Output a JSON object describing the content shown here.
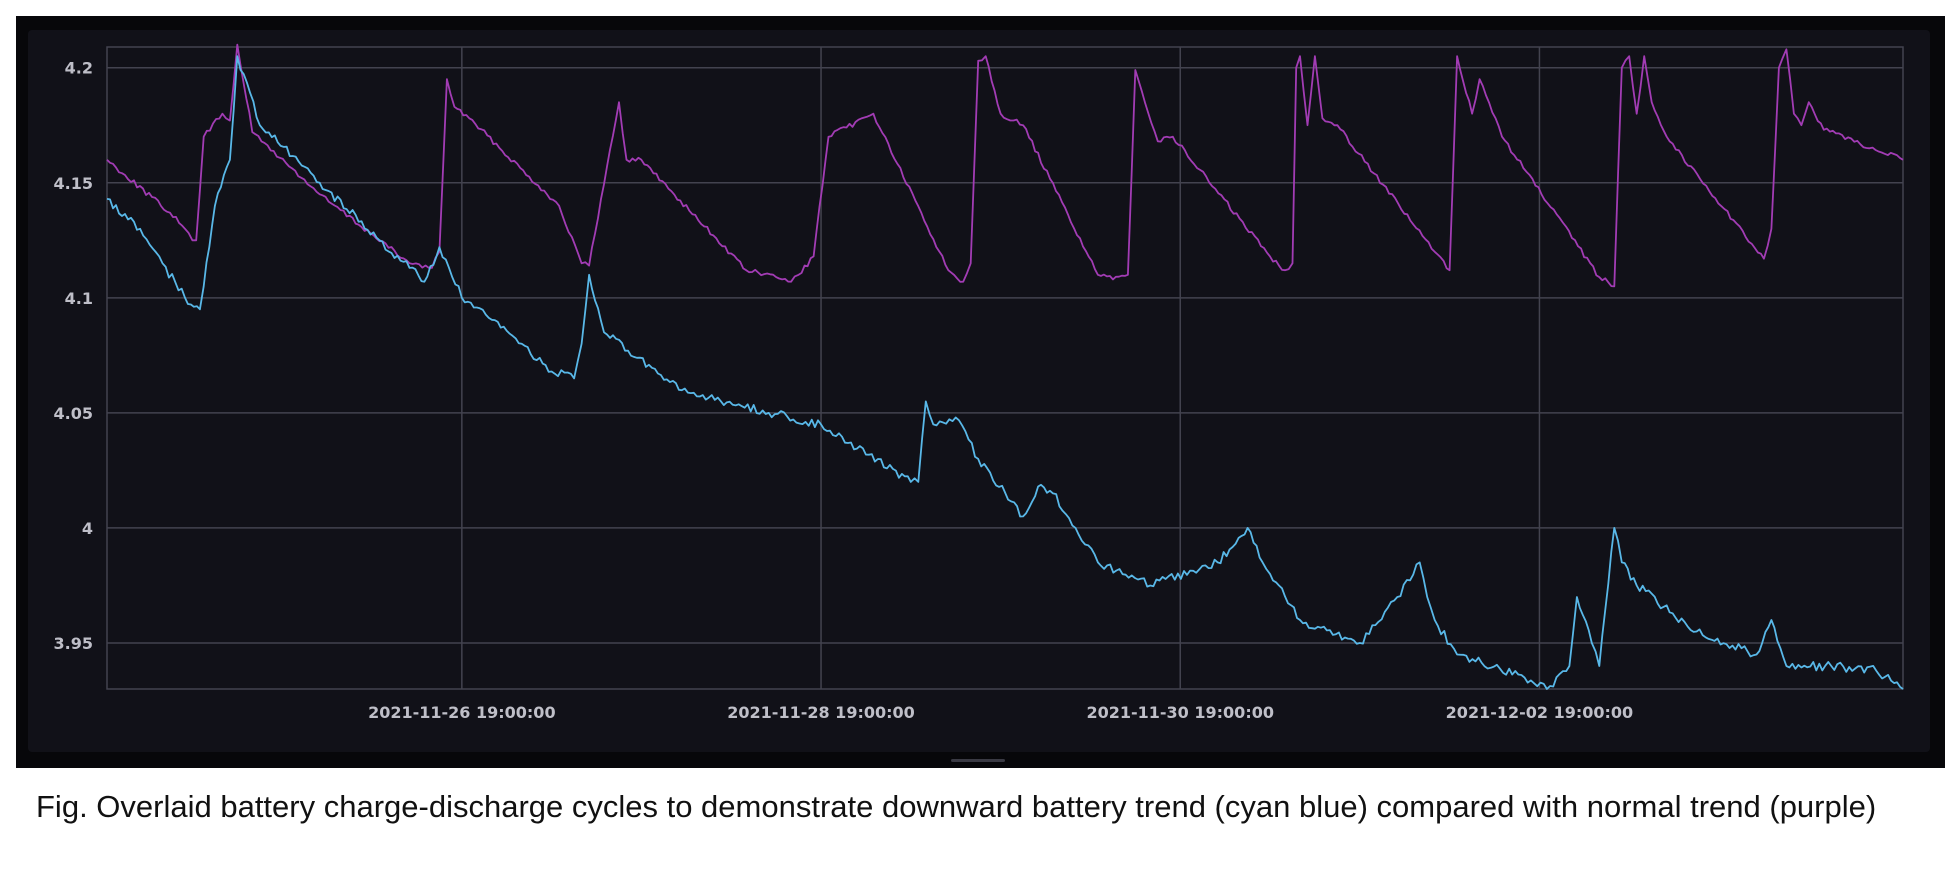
{
  "caption": "Fig. Overlaid battery charge-discharge cycles to demonstrate downward battery trend (cyan blue) compared with normal trend (purple)",
  "chart_data": {
    "type": "line",
    "title": "",
    "xlabel": "",
    "ylabel": "",
    "ylim": [
      3.93,
      4.209
    ],
    "xlim": [
      "2021-11-24 19:35:00",
      "2021-12-04 19:35:00"
    ],
    "grid": true,
    "legend": "none",
    "background": "#111118",
    "y_ticks": [
      {
        "value": 3.95,
        "label": "3.95"
      },
      {
        "value": 4.0,
        "label": "4"
      },
      {
        "value": 4.05,
        "label": "4.05"
      },
      {
        "value": 4.1,
        "label": "4.1"
      },
      {
        "value": 4.15,
        "label": "4.15"
      },
      {
        "value": 4.2,
        "label": "4.2"
      }
    ],
    "x_ticks": [
      {
        "value": "2021-11-26 19:00:00",
        "label": "2021-11-26 19:00:00"
      },
      {
        "value": "2021-11-28 19:00:00",
        "label": "2021-11-28 19:00:00"
      },
      {
        "value": "2021-11-30 19:00:00",
        "label": "2021-11-30 19:00:00"
      },
      {
        "value": "2021-12-02 19:00:00",
        "label": "2021-12-02 19:00:00"
      }
    ],
    "series": [
      {
        "color": "#a23cb4",
        "x": [
          "2021-11-24 19:35",
          "2021-11-25 04:00",
          "2021-11-25 06:00",
          "2021-11-25 07:00",
          "2021-11-25 07:30",
          "2021-11-25 08:30",
          "2021-11-25 11:00",
          "2021-11-25 12:00",
          "2021-11-25 13:00",
          "2021-11-25 15:00",
          "2021-11-26 00:00",
          "2021-11-26 12:00",
          "2021-11-26 15:00",
          "2021-11-26 16:00",
          "2021-11-26 17:00",
          "2021-11-26 18:00",
          "2021-11-26 20:00",
          "2021-11-27 08:00",
          "2021-11-27 11:00",
          "2021-11-27 12:00",
          "2021-11-27 16:00",
          "2021-11-27 17:00",
          "2021-11-27 19:00",
          "2021-11-28 09:00",
          "2021-11-28 13:00",
          "2021-11-28 15:00",
          "2021-11-28 16:00",
          "2021-11-28 18:00",
          "2021-11-28 20:00",
          "2021-11-29 02:00",
          "2021-11-29 12:00",
          "2021-11-29 14:00",
          "2021-11-29 15:00",
          "2021-11-29 16:00",
          "2021-11-29 17:00",
          "2021-11-29 19:00",
          "2021-11-29 22:00",
          "2021-11-30 08:00",
          "2021-11-30 10:00",
          "2021-11-30 12:00",
          "2021-11-30 13:00",
          "2021-11-30 16:00",
          "2021-11-30 18:00",
          "2021-12-01 07:00",
          "2021-12-01 09:00",
          "2021-12-01 10:00",
          "2021-12-01 10:30",
          "2021-12-01 11:00",
          "2021-12-01 12:00",
          "2021-12-01 13:00",
          "2021-12-01 14:00",
          "2021-12-01 16:00",
          "2021-12-02 05:00",
          "2021-12-02 07:00",
          "2021-12-02 08:00",
          "2021-12-02 10:00",
          "2021-12-02 11:00",
          "2021-12-02 14:00",
          "2021-12-03 03:00",
          "2021-12-03 05:00",
          "2021-12-03 06:00",
          "2021-12-03 07:00",
          "2021-12-03 08:00",
          "2021-12-03 09:00",
          "2021-12-03 10:00",
          "2021-12-03 12:00",
          "2021-12-04 01:00",
          "2021-12-04 02:00",
          "2021-12-04 03:00",
          "2021-12-04 04:00",
          "2021-12-04 05:00",
          "2021-12-04 06:00",
          "2021-12-04 07:00",
          "2021-12-04 09:00",
          "2021-12-04 19:35"
        ],
        "y": [
          4.16,
          4.137,
          4.13,
          4.125,
          4.125,
          4.17,
          4.18,
          4.177,
          4.21,
          4.172,
          4.145,
          4.115,
          4.113,
          4.12,
          4.195,
          4.183,
          4.178,
          4.14,
          4.115,
          4.114,
          4.185,
          4.16,
          4.16,
          4.112,
          4.109,
          4.107,
          4.11,
          4.118,
          4.17,
          4.18,
          4.112,
          4.107,
          4.115,
          4.203,
          4.205,
          4.18,
          4.175,
          4.11,
          4.108,
          4.11,
          4.199,
          4.168,
          4.17,
          4.118,
          4.112,
          4.115,
          4.2,
          4.205,
          4.175,
          4.205,
          4.178,
          4.175,
          4.12,
          4.112,
          4.205,
          4.18,
          4.195,
          4.17,
          4.109,
          4.105,
          4.2,
          4.205,
          4.18,
          4.205,
          4.185,
          4.17,
          4.117,
          4.13,
          4.2,
          4.208,
          4.18,
          4.175,
          4.185,
          4.173,
          4.16
        ]
      },
      {
        "color": "#59b8e8",
        "x": [
          "2021-11-24 19:35",
          "2021-11-25 00:00",
          "2021-11-25 03:00",
          "2021-11-25 06:00",
          "2021-11-25 08:00",
          "2021-11-25 08:30",
          "2021-11-25 10:00",
          "2021-11-25 12:00",
          "2021-11-25 13:00",
          "2021-11-25 16:00",
          "2021-11-26 00:00",
          "2021-11-26 08:00",
          "2021-11-26 12:00",
          "2021-11-26 14:00",
          "2021-11-26 16:00",
          "2021-11-26 19:00",
          "2021-11-27 03:00",
          "2021-11-27 07:00",
          "2021-11-27 10:00",
          "2021-11-27 11:00",
          "2021-11-27 12:00",
          "2021-11-27 14:00",
          "2021-11-28 00:00",
          "2021-11-28 12:00",
          "2021-11-28 19:00",
          "2021-11-29 07:00",
          "2021-11-29 08:00",
          "2021-11-29 09:00",
          "2021-11-29 10:00",
          "2021-11-29 13:00",
          "2021-11-29 16:00",
          "2021-11-29 22:00",
          "2021-11-30 00:00",
          "2021-11-30 02:00",
          "2021-11-30 05:00",
          "2021-11-30 08:00",
          "2021-11-30 15:00",
          "2021-12-01 00:00",
          "2021-12-01 04:00",
          "2021-12-01 06:00",
          "2021-12-01 07:00",
          "2021-12-01 11:00",
          "2021-12-01 19:00",
          "2021-12-02 00:00",
          "2021-12-02 03:00",
          "2021-12-02 04:00",
          "2021-12-02 05:00",
          "2021-12-02 08:00",
          "2021-12-02 17:00",
          "2021-12-02 20:00",
          "2021-12-02 23:00",
          "2021-12-03 00:00",
          "2021-12-03 02:00",
          "2021-12-03 03:00",
          "2021-12-03 05:00",
          "2021-12-03 06:00",
          "2021-12-03 08:00",
          "2021-12-03 16:00",
          "2021-12-04 00:00",
          "2021-12-04 02:00",
          "2021-12-04 04:00",
          "2021-12-04 10:00",
          "2021-12-04 16:00",
          "2021-12-04 19:35"
        ],
        "y": [
          4.143,
          4.13,
          4.115,
          4.1,
          4.095,
          4.105,
          4.14,
          4.16,
          4.205,
          4.175,
          4.15,
          4.125,
          4.113,
          4.107,
          4.122,
          4.1,
          4.08,
          4.068,
          4.065,
          4.08,
          4.11,
          4.085,
          4.06,
          4.05,
          4.045,
          4.02,
          4.02,
          4.055,
          4.045,
          4.048,
          4.03,
          4.005,
          4.018,
          4.015,
          4.0,
          3.985,
          3.975,
          3.985,
          4.0,
          3.985,
          3.98,
          3.96,
          3.95,
          3.97,
          3.985,
          3.97,
          3.96,
          3.945,
          3.935,
          3.93,
          3.94,
          3.97,
          3.95,
          3.94,
          4.0,
          3.985,
          3.975,
          3.955,
          3.945,
          3.96,
          3.94,
          3.94,
          3.938,
          3.93
        ]
      }
    ]
  }
}
